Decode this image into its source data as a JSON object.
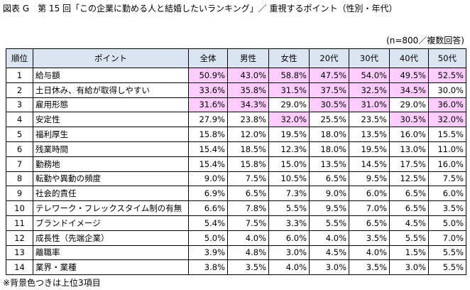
{
  "header": {
    "title": "図表 G　第 15 回「この企業に勤める人と結婚したいランキング」／ 重視するポイント（性別・年代）",
    "note": "(n=800／複数回答)"
  },
  "table": {
    "columns": [
      "順位",
      "ポイント",
      "全体",
      "男性",
      "女性",
      "20代",
      "30代",
      "40代",
      "50代"
    ],
    "rows": [
      [
        "1",
        "給与額",
        "50.9%",
        "43.0%",
        "58.8%",
        "47.5%",
        "54.0%",
        "49.5%",
        "52.5%"
      ],
      [
        "2",
        "土日休み、有給が取得しやすい",
        "33.6%",
        "35.8%",
        "31.5%",
        "37.5%",
        "32.5%",
        "34.5%",
        "30.0%"
      ],
      [
        "3",
        "雇用形態",
        "31.6%",
        "34.3%",
        "29.0%",
        "30.5%",
        "31.0%",
        "29.0%",
        "36.0%"
      ],
      [
        "4",
        "安定性",
        "27.9%",
        "23.8%",
        "32.0%",
        "25.5%",
        "23.5%",
        "30.5%",
        "32.0%"
      ],
      [
        "5",
        "福利厚生",
        "15.8%",
        "12.0%",
        "19.5%",
        "18.0%",
        "13.5%",
        "16.0%",
        "15.5%"
      ],
      [
        "6",
        "残業時間",
        "15.4%",
        "18.5%",
        "12.3%",
        "18.0%",
        "19.5%",
        "13.0%",
        "11.0%"
      ],
      [
        "7",
        "勤務地",
        "15.4%",
        "15.8%",
        "15.0%",
        "13.5%",
        "14.5%",
        "17.5%",
        "16.0%"
      ],
      [
        "8",
        "転勤や異動の頻度",
        "9.0%",
        "7.5%",
        "10.5%",
        "6.5%",
        "9.5%",
        "12.5%",
        "7.5%"
      ],
      [
        "9",
        "社会的責任",
        "6.9%",
        "6.5%",
        "7.3%",
        "9.0%",
        "6.0%",
        "6.5%",
        "6.0%"
      ],
      [
        "10",
        "テレワーク・フレックスタイム制の有無",
        "6.6%",
        "7.8%",
        "5.5%",
        "9.5%",
        "7.0%",
        "6.5%",
        "3.5%"
      ],
      [
        "11",
        "ブランドイメージ",
        "5.4%",
        "7.5%",
        "3.3%",
        "5.5%",
        "6.5%",
        "4.5%",
        "5.0%"
      ],
      [
        "12",
        "成長性（先端企業）",
        "5.0%",
        "4.0%",
        "6.0%",
        "4.0%",
        "3.5%",
        "5.5%",
        "7.0%"
      ],
      [
        "13",
        "離職率",
        "3.9%",
        "4.8%",
        "3.0%",
        "4.5%",
        "4.0%",
        "1.5%",
        "5.5%"
      ],
      [
        "14",
        "業界・業種",
        "3.8%",
        "3.5%",
        "4.0%",
        "3.0%",
        "3.5%",
        "3.0%",
        "5.5%"
      ]
    ],
    "highlight_color": "#ffccff",
    "highlighted": [
      [
        true,
        true,
        true,
        true,
        true,
        true,
        true
      ],
      [
        true,
        true,
        true,
        true,
        true,
        true,
        false
      ],
      [
        true,
        true,
        false,
        true,
        true,
        false,
        true
      ],
      [
        false,
        false,
        true,
        false,
        false,
        true,
        true
      ],
      [
        false,
        false,
        false,
        false,
        false,
        false,
        false
      ],
      [
        false,
        false,
        false,
        false,
        false,
        false,
        false
      ],
      [
        false,
        false,
        false,
        false,
        false,
        false,
        false
      ],
      [
        false,
        false,
        false,
        false,
        false,
        false,
        false
      ],
      [
        false,
        false,
        false,
        false,
        false,
        false,
        false
      ],
      [
        false,
        false,
        false,
        false,
        false,
        false,
        false
      ],
      [
        false,
        false,
        false,
        false,
        false,
        false,
        false
      ],
      [
        false,
        false,
        false,
        false,
        false,
        false,
        false
      ],
      [
        false,
        false,
        false,
        false,
        false,
        false,
        false
      ],
      [
        false,
        false,
        false,
        false,
        false,
        false,
        false
      ]
    ]
  },
  "footer": {
    "note": "※背景色つきは上位3項目"
  }
}
